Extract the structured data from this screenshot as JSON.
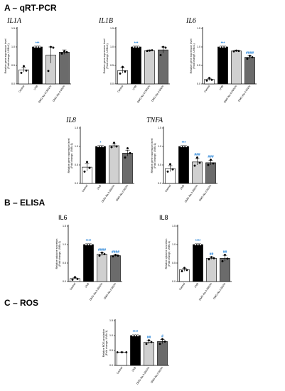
{
  "sections": [
    {
      "label": "A – qRT-PCR"
    },
    {
      "label": "B – ELISA"
    },
    {
      "label": "C – ROS"
    }
  ],
  "categories": [
    "Control",
    "UVB",
    "DMG-Na 0.0002%",
    "DMG-Na 0.002%"
  ],
  "colors": [
    "#ffffff",
    "#000000",
    "#d0d0d0",
    "#6b6b6b"
  ],
  "sig_color": "#1f7fd6",
  "chart_data": [
    {
      "type": "bar",
      "section": 0,
      "title": "IL1A",
      "title_style": "italic",
      "ylabel": [
        "Relative gene expression level",
        "(Fold change, UVB=1)"
      ],
      "ylim": [
        0,
        1.5
      ],
      "yticks": [
        0,
        0.5,
        1.0,
        1.5
      ],
      "categories": [
        "Control",
        "UVB",
        "DMG-Na 0.0002%",
        "DMG-Na 0.002%"
      ],
      "values": [
        0.38,
        1.0,
        0.78,
        0.86
      ],
      "errors": [
        0.06,
        0.02,
        0.22,
        0.06
      ],
      "points": [
        [
          0.3,
          0.48,
          0.36
        ],
        [
          1.0,
          1.0,
          1.0
        ],
        [
          0.35,
          1.0,
          0.98
        ],
        [
          0.82,
          0.88,
          0.86
        ]
      ],
      "significance": [
        "",
        "***",
        "",
        ""
      ]
    },
    {
      "type": "bar",
      "section": 0,
      "title": "IL1B",
      "title_style": "italic",
      "ylabel": [
        "Relative gene expression level",
        "(Fold change, UVB=1)"
      ],
      "ylim": [
        0,
        1.5
      ],
      "yticks": [
        0,
        0.5,
        1.0,
        1.5
      ],
      "categories": [
        "Control",
        "UVB",
        "DMG-Na 0.0002%",
        "DMG-Na 0.002%"
      ],
      "values": [
        0.36,
        1.0,
        0.9,
        0.92
      ],
      "errors": [
        0.07,
        0.02,
        0.02,
        0.08
      ],
      "points": [
        [
          0.28,
          0.46,
          0.33
        ],
        [
          1.0,
          1.0,
          1.0
        ],
        [
          0.89,
          0.9,
          0.91
        ],
        [
          0.78,
          1.0,
          0.98
        ]
      ],
      "significance": [
        "",
        "***",
        "",
        ""
      ]
    },
    {
      "type": "bar",
      "section": 0,
      "title": "IL6",
      "title_style": "italic",
      "ylabel": [
        "Relative gene expression level",
        "(Fold change, UVB=1)"
      ],
      "ylim": [
        0,
        1.5
      ],
      "yticks": [
        0,
        0.5,
        1.0,
        1.5
      ],
      "categories": [
        "Control",
        "UVB",
        "DMG-Na 0.0002%",
        "DMG-Na 0.002%"
      ],
      "values": [
        0.12,
        1.0,
        0.89,
        0.72
      ],
      "errors": [
        0.03,
        0.02,
        0.02,
        0.04
      ],
      "points": [
        [
          0.09,
          0.16,
          0.11
        ],
        [
          1.0,
          1.0,
          1.0
        ],
        [
          0.88,
          0.9,
          0.89
        ],
        [
          0.68,
          0.76,
          0.72
        ]
      ],
      "significance": [
        "",
        "***",
        "",
        "####"
      ]
    },
    {
      "type": "bar",
      "section": 0,
      "title": "IL8",
      "title_style": "italic",
      "ylabel": [
        "Relative gene expression level",
        "(Fold change, UVB=1)"
      ],
      "ylim": [
        0,
        1.5
      ],
      "yticks": [
        0,
        0.5,
        1.0,
        1.5
      ],
      "categories": [
        "Control",
        "UVB",
        "DMG-Na 0.0002%",
        "DMG-Na 0.002%"
      ],
      "values": [
        0.44,
        1.0,
        1.02,
        0.82
      ],
      "errors": [
        0.1,
        0.02,
        0.05,
        0.08
      ],
      "points": [
        [
          0.32,
          0.58,
          0.42
        ],
        [
          1.0,
          1.0,
          1.0
        ],
        [
          0.98,
          1.1,
          1.0
        ],
        [
          0.7,
          0.95,
          0.82
        ]
      ],
      "significance": [
        "",
        "*",
        "",
        ""
      ]
    },
    {
      "type": "bar",
      "section": 0,
      "title": "TNFA",
      "title_style": "italic",
      "ylabel": [
        "Relative gene expression level",
        "(Fold change, UVB=1)"
      ],
      "ylim": [
        0,
        1.5
      ],
      "yticks": [
        0,
        0.5,
        1.0,
        1.5
      ],
      "categories": [
        "Control",
        "UVB",
        "DMG-Na 0.0002%",
        "DMG-Na 0.002%"
      ],
      "values": [
        0.4,
        1.0,
        0.58,
        0.56
      ],
      "errors": [
        0.08,
        0.02,
        0.08,
        0.06
      ],
      "points": [
        [
          0.32,
          0.52,
          0.38
        ],
        [
          1.0,
          1.0,
          1.0
        ],
        [
          0.48,
          0.7,
          0.56
        ],
        [
          0.5,
          0.64,
          0.54
        ]
      ],
      "significance": [
        "",
        "***",
        "###",
        "###"
      ]
    },
    {
      "type": "bar",
      "section": 1,
      "title": "IL6",
      "title_style": "plain",
      "ylabel": [
        "Relative cytokine secretion",
        "(Fold change, UVB=1)"
      ],
      "ylim": [
        0,
        1.5
      ],
      "yticks": [
        0,
        0.5,
        1.0,
        1.5
      ],
      "categories": [
        "Control",
        "UVB",
        "DMG-Na 0.0002%",
        "DMG-Na 0.002%"
      ],
      "values": [
        0.08,
        1.0,
        0.74,
        0.7
      ],
      "errors": [
        0.02,
        0.02,
        0.04,
        0.02
      ],
      "points": [
        [
          0.05,
          0.12,
          0.07
        ],
        [
          1.0,
          1.0,
          1.0
        ],
        [
          0.7,
          0.78,
          0.74
        ],
        [
          0.68,
          0.72,
          0.7
        ]
      ],
      "significance": [
        "",
        "****",
        "####",
        "####"
      ]
    },
    {
      "type": "bar",
      "section": 1,
      "title": "IL8",
      "title_style": "plain",
      "ylabel": [
        "Relative cytokine secretion",
        "(Fold change, UVB=1)"
      ],
      "ylim": [
        0,
        1.5
      ],
      "yticks": [
        0,
        0.5,
        1.0,
        1.5
      ],
      "categories": [
        "Control",
        "UVB",
        "DMG-Na 0.0002%",
        "DMG-Na 0.002%"
      ],
      "values": [
        0.32,
        1.0,
        0.63,
        0.63
      ],
      "errors": [
        0.04,
        0.02,
        0.03,
        0.08
      ],
      "points": [
        [
          0.28,
          0.37,
          0.31
        ],
        [
          1.0,
          1.0,
          1.0
        ],
        [
          0.6,
          0.66,
          0.63
        ],
        [
          0.55,
          0.72,
          0.62
        ]
      ],
      "significance": [
        "",
        "****",
        "##",
        "##"
      ]
    },
    {
      "type": "bar",
      "section": 2,
      "title": "",
      "title_style": "plain",
      "ylabel": [
        "Relative ROS production",
        "(Fold change, UVB=1)"
      ],
      "ylim": [
        0,
        1.5
      ],
      "yticks": [
        0,
        0.5,
        1.0,
        1.5
      ],
      "categories": [
        "Control",
        "UVB",
        "DMG-Na 0.0002%",
        "DMG-Na 0.002%"
      ],
      "values": [
        0.44,
        1.0,
        0.78,
        0.8
      ],
      "errors": [
        0.01,
        0.02,
        0.06,
        0.07
      ],
      "points": [
        [
          0.44,
          0.44,
          0.44
        ],
        [
          1.0,
          1.0,
          1.0
        ],
        [
          0.72,
          0.84,
          0.78
        ],
        [
          0.72,
          0.88,
          0.8
        ]
      ],
      "significance": [
        "",
        "****",
        "##",
        "#"
      ]
    }
  ]
}
